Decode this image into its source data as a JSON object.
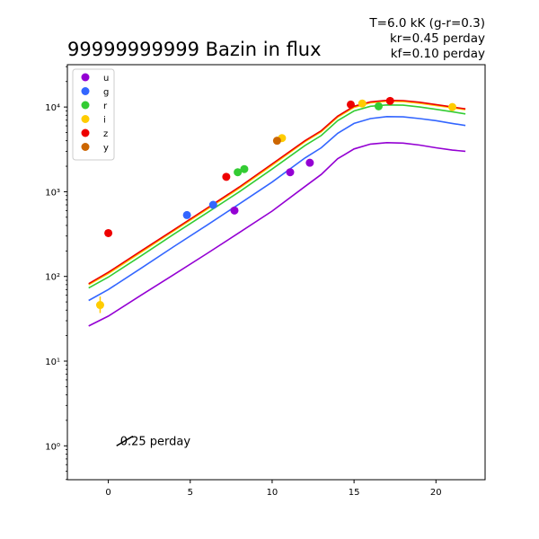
{
  "chart_data": {
    "type": "scatter",
    "title": "99999999999 Bazin in flux",
    "info_lines": [
      "T=6.0 kK (g-r=0.3)",
      "kr=0.45 perday",
      "kf=0.10 perday"
    ],
    "xlabel": "",
    "ylabel": "",
    "xlim": [
      -2.5,
      23
    ],
    "ylim_log10": [
      -0.4,
      4.5
    ],
    "y_scale": "log",
    "x_ticks": [
      0,
      5,
      10,
      15,
      20
    ],
    "y_ticks": [
      {
        "exp": 0,
        "label": "10⁰"
      },
      {
        "exp": 1,
        "label": "10¹"
      },
      {
        "exp": 2,
        "label": "10²"
      },
      {
        "exp": 3,
        "label": "10³"
      },
      {
        "exp": 4,
        "label": "10⁴"
      }
    ],
    "legend": {
      "position": "top-left",
      "entries": [
        "u",
        "g",
        "r",
        "i",
        "z",
        "y"
      ]
    },
    "slope_annotation": {
      "label": "0.25 perday",
      "x0": 0.5,
      "y0": 1.0,
      "x1": 1.5,
      "y1": 1.3
    },
    "series": [
      {
        "name": "u",
        "color": "#9400d3",
        "points": [
          [
            7.7,
            600
          ],
          [
            11.1,
            1700
          ],
          [
            12.3,
            2200
          ]
        ],
        "curve": [
          [
            -1.2,
            26
          ],
          [
            0,
            34
          ],
          [
            2,
            60
          ],
          [
            4,
            105
          ],
          [
            6,
            185
          ],
          [
            8,
            330
          ],
          [
            10,
            590
          ],
          [
            12,
            1150
          ],
          [
            13,
            1600
          ],
          [
            14,
            2450
          ],
          [
            15,
            3200
          ],
          [
            16,
            3650
          ],
          [
            17,
            3800
          ],
          [
            18,
            3750
          ],
          [
            19,
            3550
          ],
          [
            20,
            3300
          ],
          [
            21,
            3100
          ],
          [
            21.8,
            3000
          ]
        ]
      },
      {
        "name": "g",
        "color": "#3366ff",
        "points": [
          [
            4.8,
            530
          ],
          [
            6.4,
            700
          ]
        ],
        "curve": [
          [
            -1.2,
            52
          ],
          [
            0,
            70
          ],
          [
            2,
            125
          ],
          [
            4,
            225
          ],
          [
            6,
            400
          ],
          [
            8,
            720
          ],
          [
            10,
            1300
          ],
          [
            12,
            2500
          ],
          [
            13,
            3300
          ],
          [
            14,
            4900
          ],
          [
            15,
            6400
          ],
          [
            16,
            7300
          ],
          [
            17,
            7700
          ],
          [
            18,
            7650
          ],
          [
            19,
            7300
          ],
          [
            20,
            6900
          ],
          [
            21,
            6400
          ],
          [
            21.8,
            6050
          ]
        ]
      },
      {
        "name": "r",
        "color": "#33cc33",
        "points": [
          [
            7.9,
            1700
          ],
          [
            8.3,
            1850
          ],
          [
            16.5,
            10200
          ]
        ],
        "curve": [
          [
            -1.2,
            73
          ],
          [
            0,
            98
          ],
          [
            2,
            175
          ],
          [
            4,
            315
          ],
          [
            6,
            560
          ],
          [
            8,
            1000
          ],
          [
            10,
            1850
          ],
          [
            12,
            3500
          ],
          [
            13,
            4600
          ],
          [
            14,
            6900
          ],
          [
            15,
            9000
          ],
          [
            16,
            10200
          ],
          [
            17,
            10600
          ],
          [
            18,
            10500
          ],
          [
            19,
            10000
          ],
          [
            20,
            9400
          ],
          [
            21,
            8800
          ],
          [
            21.8,
            8300
          ]
        ]
      },
      {
        "name": "i",
        "color": "#ffcc00",
        "points": [
          [
            -0.5,
            46
          ],
          [
            10.6,
            4300
          ],
          [
            15.5,
            11000
          ],
          [
            21,
            10000
          ]
        ],
        "errors": [
          [
            -0.5,
            37,
            58
          ]
        ],
        "curve": [
          [
            -1.2,
            80
          ],
          [
            0,
            108
          ],
          [
            2,
            193
          ],
          [
            4,
            345
          ],
          [
            6,
            615
          ],
          [
            8,
            1100
          ],
          [
            10,
            2050
          ],
          [
            12,
            3900
          ],
          [
            13,
            5100
          ],
          [
            14,
            7600
          ],
          [
            15,
            9900
          ],
          [
            16,
            11200
          ],
          [
            17,
            11700
          ],
          [
            18,
            11600
          ],
          [
            19,
            11100
          ],
          [
            20,
            10400
          ],
          [
            21,
            9800
          ],
          [
            21.8,
            9300
          ]
        ]
      },
      {
        "name": "z",
        "color": "#ee0000",
        "points": [
          [
            0,
            325
          ],
          [
            7.2,
            1500
          ],
          [
            14.8,
            10700
          ],
          [
            17.2,
            11800
          ]
        ],
        "curve": [
          [
            -1.2,
            82
          ],
          [
            0,
            112
          ],
          [
            2,
            200
          ],
          [
            4,
            355
          ],
          [
            6,
            635
          ],
          [
            8,
            1140
          ],
          [
            10,
            2130
          ],
          [
            12,
            4000
          ],
          [
            13,
            5250
          ],
          [
            14,
            7800
          ],
          [
            15,
            10200
          ],
          [
            16,
            11500
          ],
          [
            17,
            12000
          ],
          [
            18,
            11900
          ],
          [
            19,
            11400
          ],
          [
            20,
            10700
          ],
          [
            21,
            10000
          ],
          [
            21.8,
            9500
          ]
        ]
      },
      {
        "name": "y",
        "color": "#cc6600",
        "points": [
          [
            10.3,
            4000
          ]
        ],
        "curve": []
      }
    ]
  }
}
